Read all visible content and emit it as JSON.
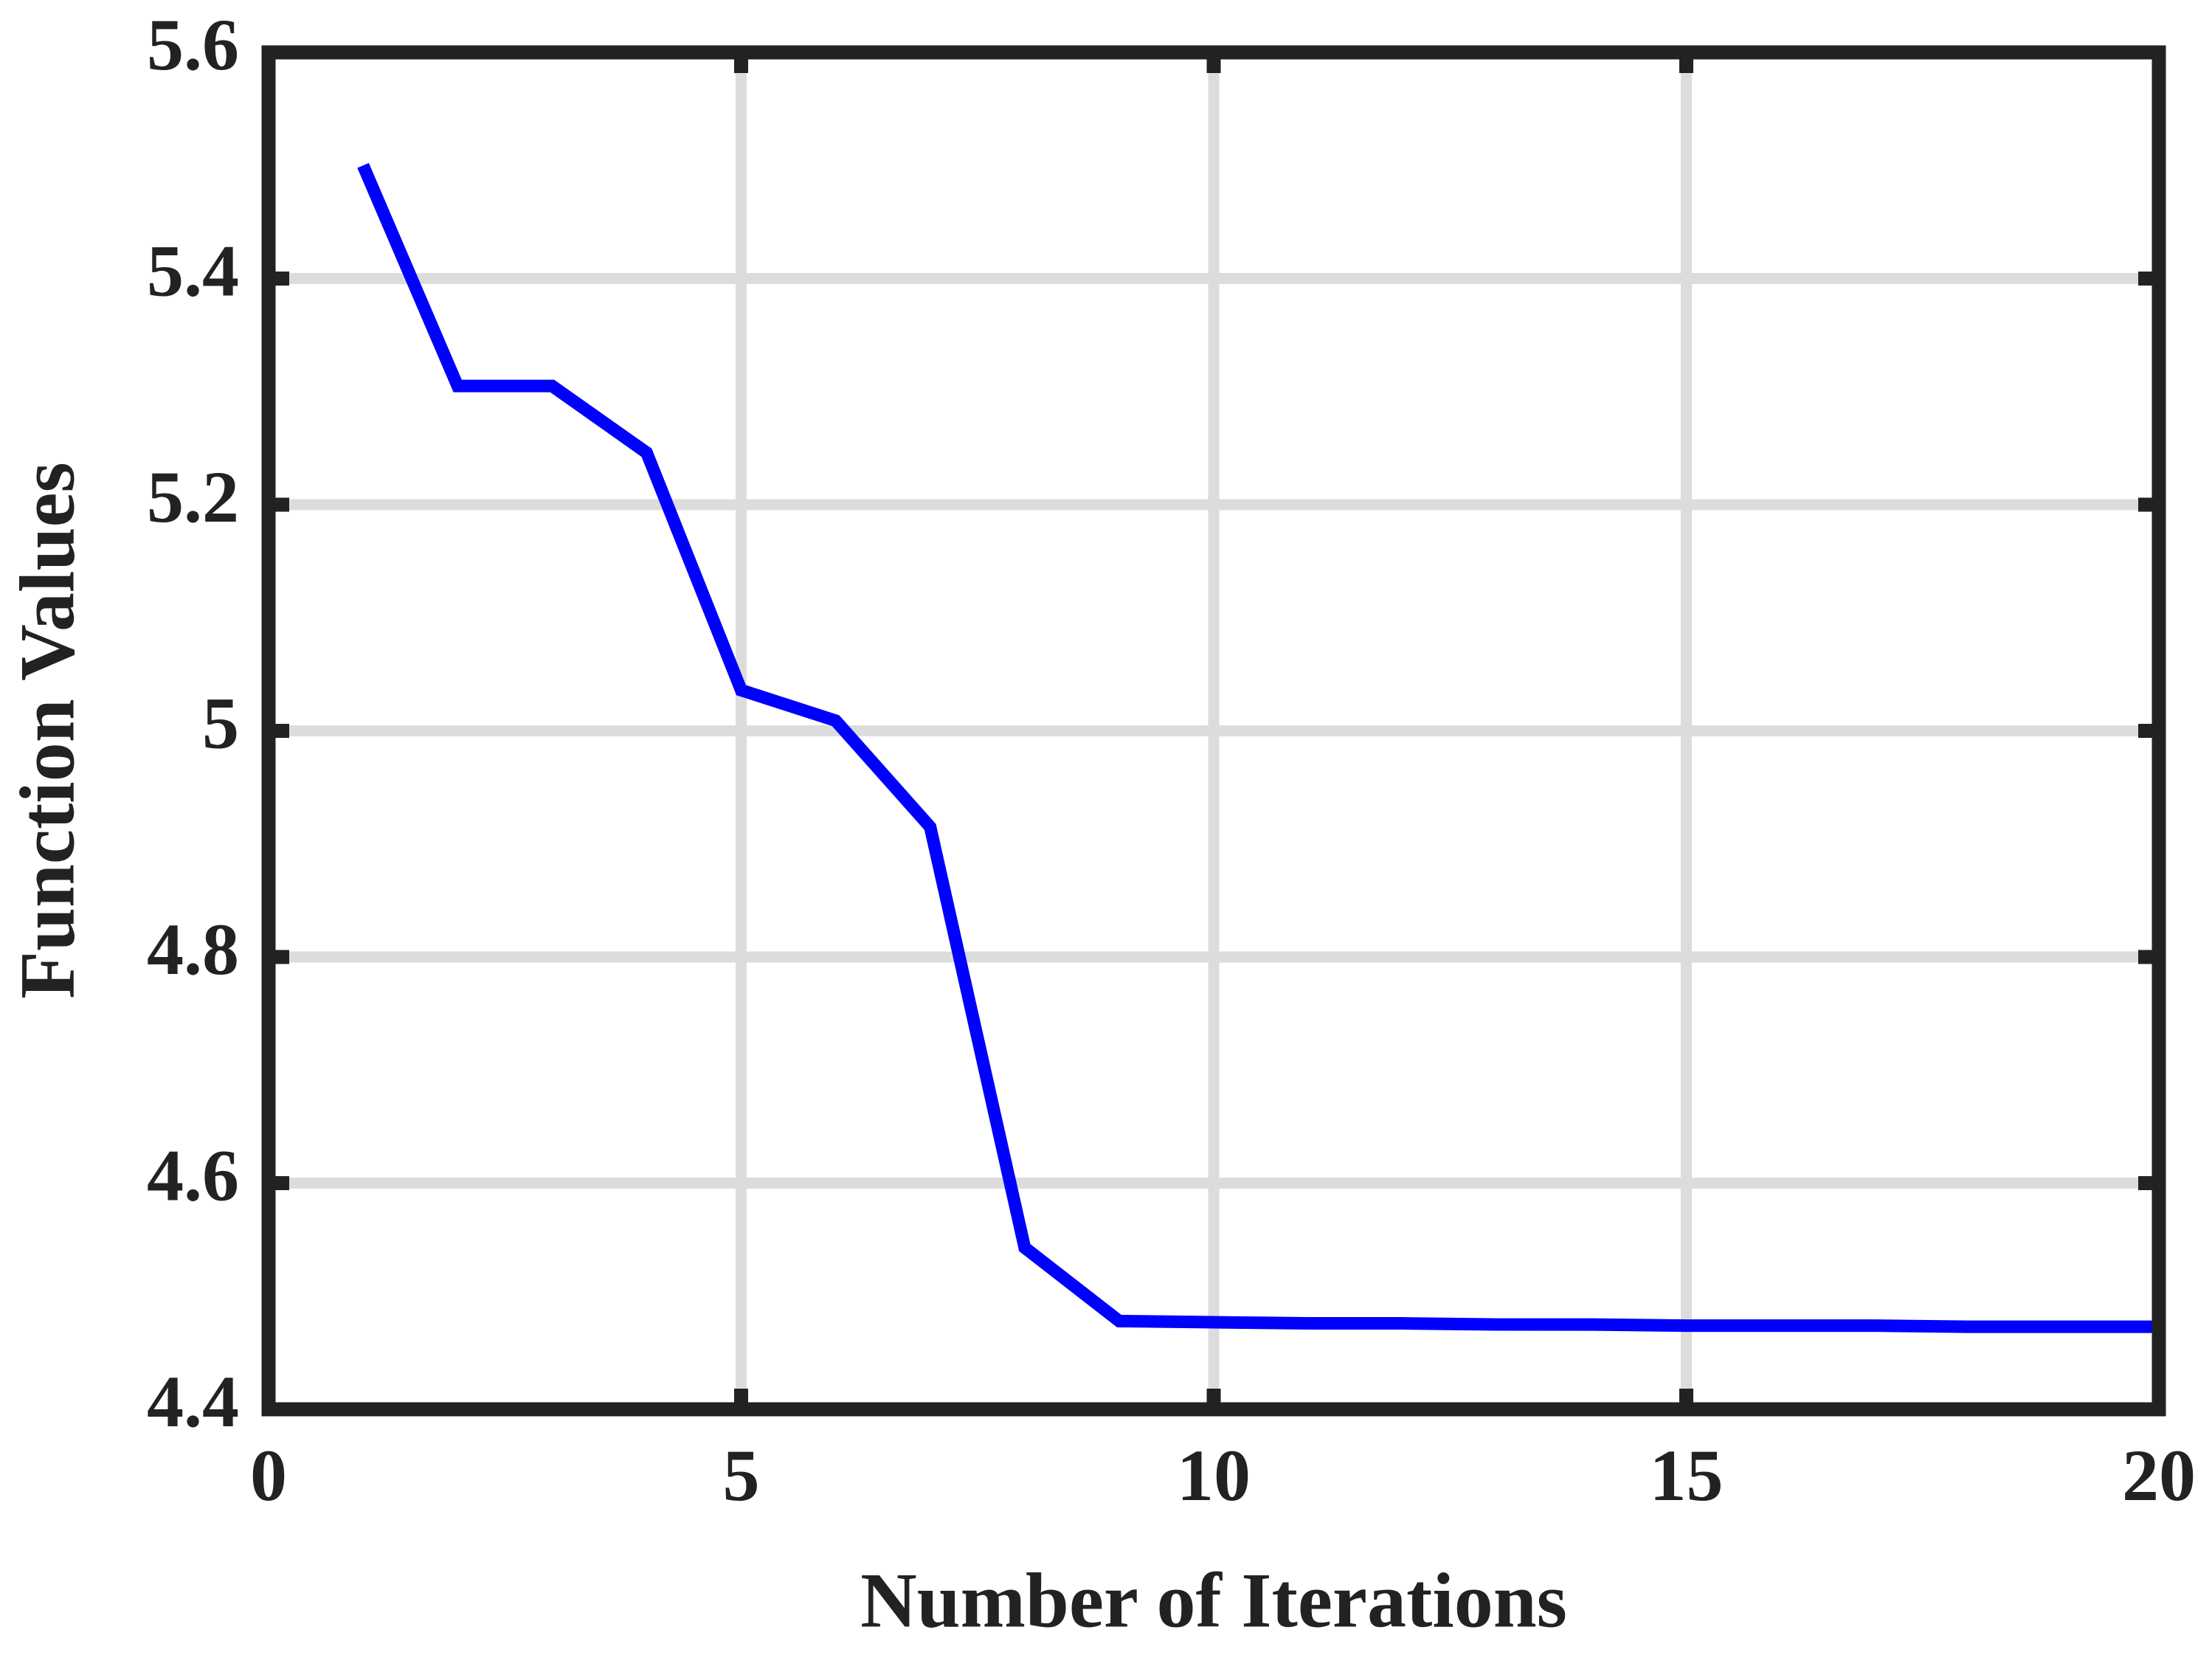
{
  "chart_data": {
    "type": "line",
    "x": [
      1,
      2,
      3,
      4,
      5,
      6,
      7,
      8,
      9,
      10,
      11,
      12,
      13,
      14,
      15,
      16,
      17,
      18,
      19,
      20
    ],
    "series": [
      {
        "color": "#0000ff",
        "values": [
          5.5,
          5.305,
          5.305,
          5.246,
          5.036,
          5.009,
          4.915,
          4.543,
          4.478,
          4.477,
          4.476,
          4.476,
          4.475,
          4.475,
          4.474,
          4.474,
          4.474,
          4.473,
          4.473,
          4.473
        ]
      }
    ],
    "xlabel": "Number of Iterations",
    "ylabel": "Function Values",
    "xlim": [
      0,
      20
    ],
    "xticks": [
      0,
      5,
      10,
      15,
      20
    ],
    "ylim": [
      4.4,
      5.6
    ],
    "yticks": [
      4.4,
      4.6,
      4.8,
      5,
      5.2,
      5.4,
      5.6
    ],
    "grid": true
  }
}
